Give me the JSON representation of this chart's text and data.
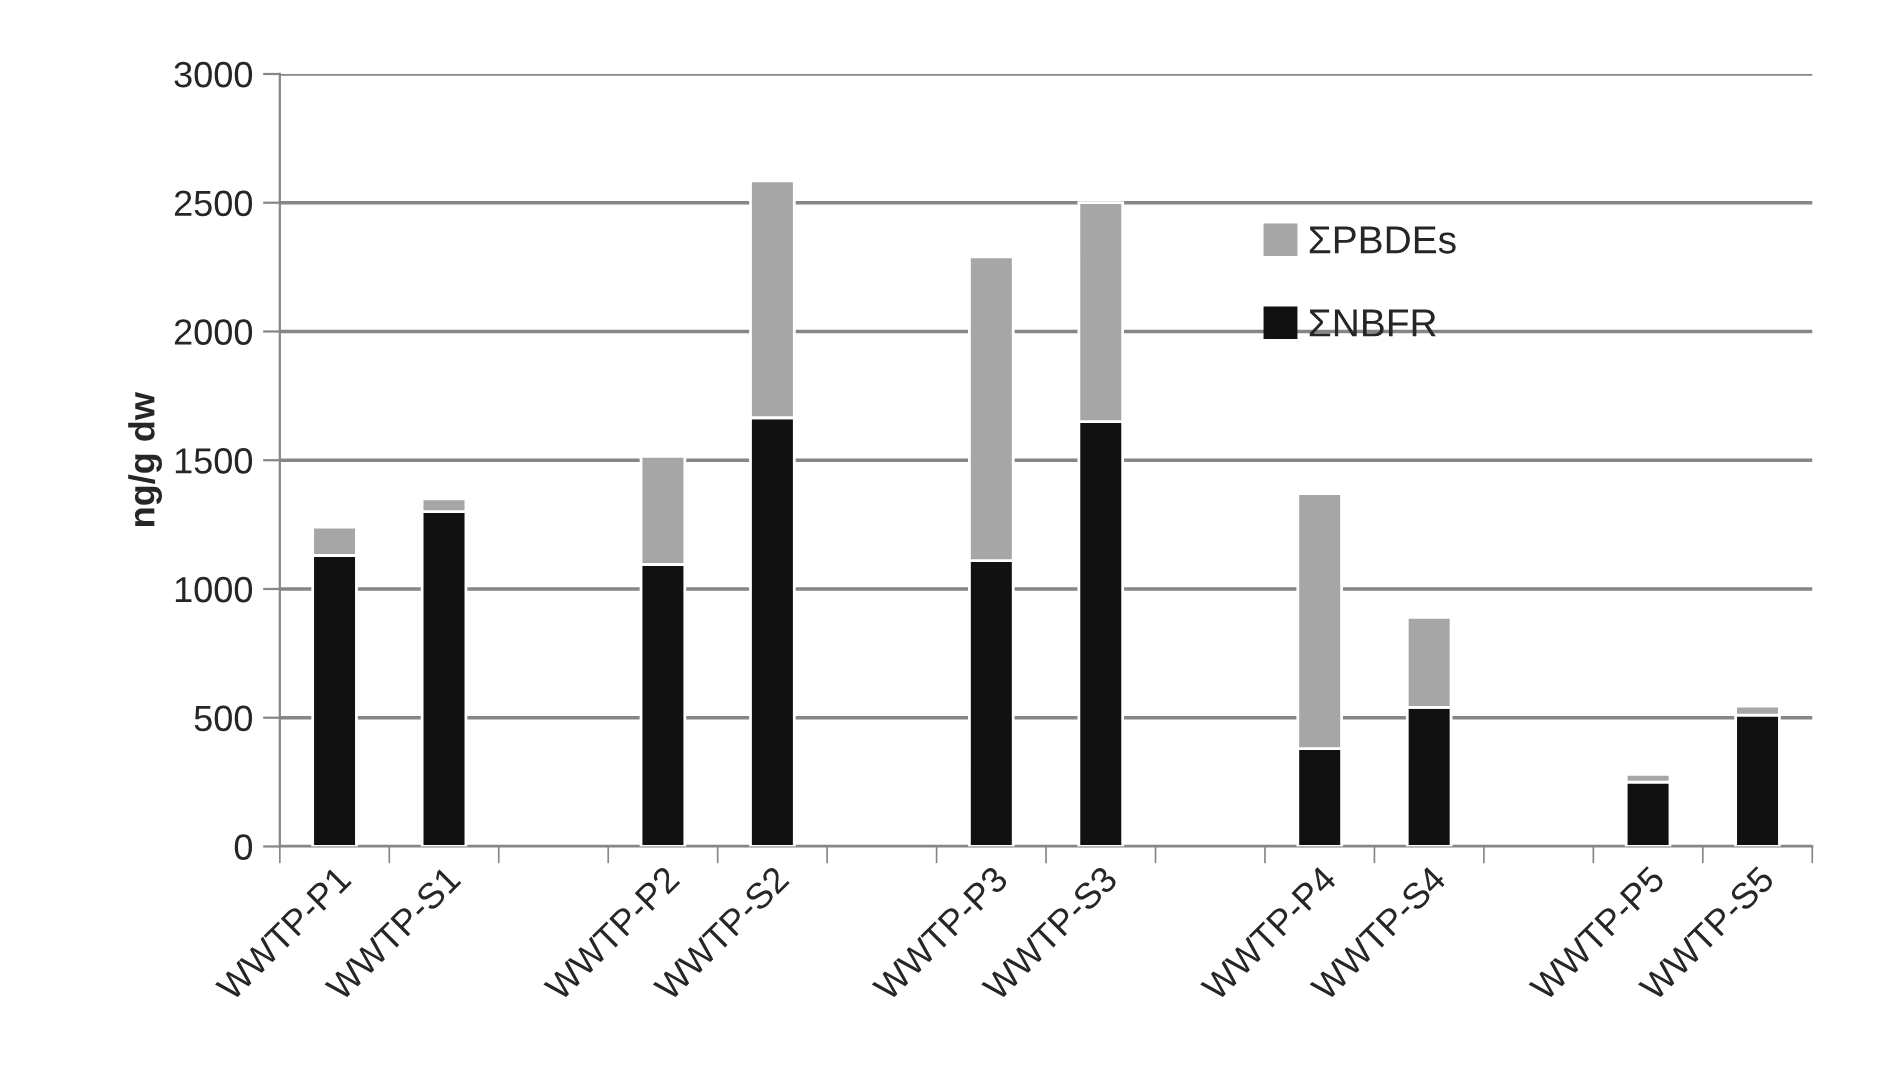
{
  "chart_data": {
    "type": "bar",
    "stacked": true,
    "ylabel": "ng/g dw",
    "categories": [
      "WWTP-P1",
      "WWTP-S1",
      null,
      "WWTP-P2",
      "WWTP-S2",
      null,
      "WWTP-P3",
      "WWTP-S3",
      null,
      "WWTP-P4",
      "WWTP-S4",
      null,
      "WWTP-P5",
      "WWTP-S5"
    ],
    "series": [
      {
        "name": "ΣNBFR",
        "color": "#111111",
        "values": [
          1130,
          1300,
          null,
          1095,
          1665,
          null,
          1110,
          1650,
          null,
          380,
          540,
          null,
          250,
          510
        ]
      },
      {
        "name": "ΣPBDEs",
        "color": "#a6a6a6",
        "values": [
          110,
          50,
          null,
          420,
          920,
          null,
          1180,
          850,
          null,
          990,
          350,
          null,
          30,
          35
        ]
      }
    ],
    "ylim": [
      0,
      3000
    ],
    "yticks": [
      0,
      500,
      1000,
      1500,
      2000,
      2500,
      3000
    ],
    "grid": "y",
    "legend": "top right"
  }
}
